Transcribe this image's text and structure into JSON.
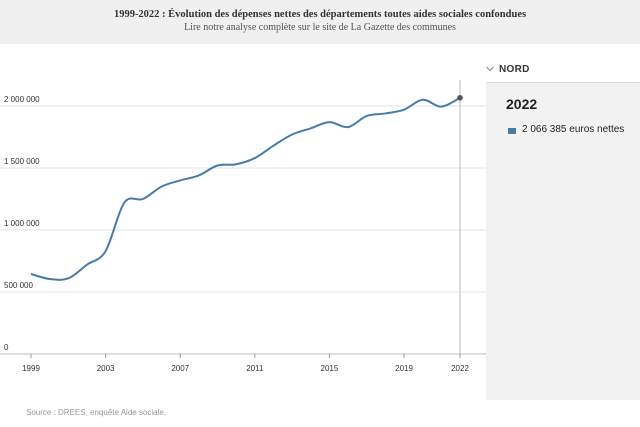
{
  "header": {
    "title": "1999-2022 : Évolution des dépenses nettes des départements toutes aides sociales confondues",
    "subtitle": "Lire notre analyse complète sur le site de La Gazette des communes"
  },
  "panel": {
    "selected": "NORD",
    "year": "2022",
    "value_text": "2 066 385 euros nettes"
  },
  "source": "Source : DREES, enquête Aide sociale.",
  "colors": {
    "line": "#4a7ba7",
    "grid": "#e3e3e3",
    "marker": "#555555",
    "panel_bg": "#f2f2f2",
    "header_bg": "#f0f0f0"
  },
  "chart_data": {
    "type": "line",
    "title": "1999-2022 : Évolution des dépenses nettes des départements toutes aides sociales confondues",
    "xlabel": "",
    "ylabel": "",
    "xlim": [
      1999,
      2022
    ],
    "ylim": [
      0,
      2100000
    ],
    "y_ticks": [
      0,
      500000,
      1000000,
      1500000,
      2000000
    ],
    "y_tick_labels": [
      "0",
      "500 000",
      "1 000 000",
      "1 500 000",
      "2 000 000"
    ],
    "x_ticks": [
      1999,
      2003,
      2007,
      2011,
      2015,
      2019,
      2022
    ],
    "x_tick_labels": [
      "1999",
      "2003",
      "2007",
      "2011",
      "2015",
      "2019",
      "2022"
    ],
    "grid": true,
    "series": [
      {
        "name": "NORD",
        "x": [
          1999,
          2000,
          2001,
          2002,
          2003,
          2004,
          2005,
          2006,
          2007,
          2008,
          2009,
          2010,
          2011,
          2012,
          2013,
          2014,
          2015,
          2016,
          2017,
          2018,
          2019,
          2020,
          2021,
          2022
        ],
        "values": [
          645000,
          605000,
          610000,
          720000,
          830000,
          1220000,
          1250000,
          1350000,
          1400000,
          1440000,
          1520000,
          1530000,
          1580000,
          1680000,
          1770000,
          1820000,
          1870000,
          1830000,
          1920000,
          1940000,
          1970000,
          2050000,
          1995000,
          2066385
        ]
      }
    ],
    "highlight": {
      "x": 2022,
      "value": 2066385
    }
  }
}
